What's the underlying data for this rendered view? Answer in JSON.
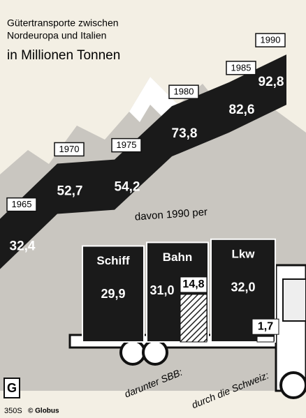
{
  "chart_data": [
    {
      "type": "area",
      "title": [
        "Gütertransporte zwischen",
        "Nordeuropa und Italien"
      ],
      "subtitle": "in Millionen Tonnen",
      "categories": [
        "1965",
        "1970",
        "1975",
        "1980",
        "1985",
        "1990"
      ],
      "values": [
        32.4,
        52.7,
        54.2,
        73.8,
        82.6,
        92.8
      ],
      "value_labels": [
        "32,4",
        "52,7",
        "54,2",
        "73,8",
        "82,6",
        "92,8"
      ],
      "color": "#1a1a1a"
    },
    {
      "type": "bar",
      "title": "davon 1990 per",
      "categories": [
        "Schiff",
        "Bahn",
        "Lkw"
      ],
      "series": [
        {
          "values": [
            29.9,
            31.0,
            32.0
          ],
          "value_labels": [
            "29,9",
            "31,0",
            "32,0"
          ],
          "color": "#1a1a1a"
        },
        {
          "name": "darunter SBB:",
          "values": [
            null,
            14.8,
            null
          ],
          "value_labels": [
            null,
            "14,8",
            null
          ],
          "color": "#ffffff"
        },
        {
          "name": "durch die Schweiz:",
          "values": [
            null,
            null,
            1.7
          ],
          "value_labels": [
            null,
            null,
            "1,7"
          ],
          "color": "#ffffff"
        }
      ]
    }
  ],
  "footer": {
    "logo": "G",
    "code": "350S",
    "source": "© Globus"
  }
}
